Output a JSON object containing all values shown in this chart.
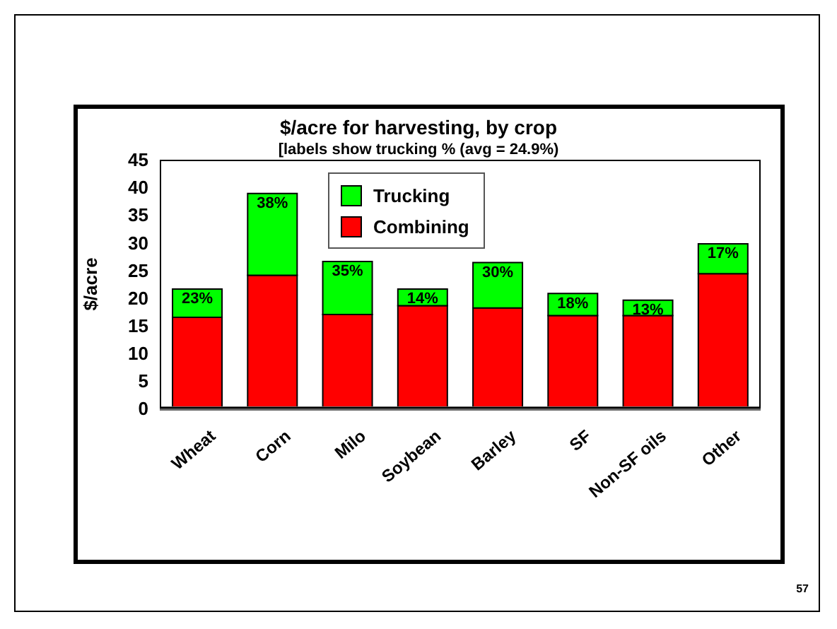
{
  "chart_data": {
    "type": "bar",
    "title": "$/acre for harvesting, by crop",
    "subtitle": "[labels show trucking % (avg = 24.9%)",
    "ylabel": "$/acre",
    "categories": [
      "Wheat",
      "Corn",
      "Milo",
      "Soybean",
      "Barley",
      "SF",
      "Non-SF oils",
      "Other"
    ],
    "stacked": true,
    "series": [
      {
        "name": "Combining",
        "color": "#ff0000",
        "values": [
          16.5,
          24.1,
          17.0,
          18.6,
          18.2,
          16.8,
          16.8,
          24.4
        ]
      },
      {
        "name": "Trucking",
        "color": "#00ff00",
        "values": [
          5.1,
          14.8,
          9.6,
          3.0,
          8.2,
          4.0,
          2.8,
          5.4
        ]
      }
    ],
    "ylim": [
      0,
      45
    ],
    "yticks": [
      0,
      5,
      10,
      15,
      20,
      25,
      30,
      35,
      40,
      45
    ],
    "grid": false,
    "legend": "top",
    "annotations": [
      {
        "text": "23%",
        "x": "Wheat",
        "y": 21.6
      },
      {
        "text": "38%",
        "x": "Corn",
        "y": 38.9
      },
      {
        "text": "35%",
        "x": "Milo",
        "y": 26.6
      },
      {
        "text": "14%",
        "x": "Soybean",
        "y": 21.6
      },
      {
        "text": "30%",
        "x": "Barley",
        "y": 26.4
      },
      {
        "text": "18%",
        "x": "SF",
        "y": 20.8
      },
      {
        "text": "13%",
        "x": "Non-SF oils",
        "y": 19.6
      },
      {
        "text": "17%",
        "x": "Other",
        "y": 29.8
      },
      "57"
    ]
  }
}
